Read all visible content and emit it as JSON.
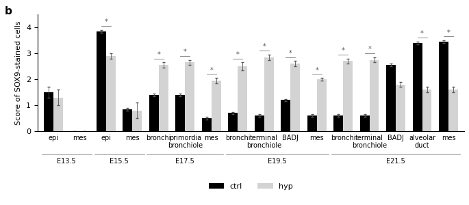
{
  "chart_data": {
    "type": "bar",
    "panel_label": "b",
    "y_label": "Score of SOX9-stained cells",
    "categories": [
      "epi",
      "mes",
      "epi",
      "mes",
      "bronchi",
      "primordia bronchiole",
      "mes",
      "bronchi",
      "terminal bronchiole",
      "BADJ",
      "mes",
      "bronchi",
      "terminal bronchiole",
      "BADJ",
      "alveolar duct",
      "mes"
    ],
    "groups": [
      {
        "name": "E13.5",
        "start": 0,
        "end": 1
      },
      {
        "name": "E15.5",
        "start": 2,
        "end": 3
      },
      {
        "name": "E17.5",
        "start": 4,
        "end": 6
      },
      {
        "name": "E19.5",
        "start": 7,
        "end": 10
      },
      {
        "name": "E21.5",
        "start": 11,
        "end": 15
      }
    ],
    "series": [
      {
        "name": "ctrl",
        "color": "#000000",
        "values": [
          1.5,
          0,
          3.85,
          0.85,
          1.4,
          1.4,
          0.5,
          0.7,
          0.6,
          1.2,
          0.6,
          0.6,
          0.6,
          2.55,
          3.4,
          3.45
        ],
        "errors": [
          0.2,
          0,
          0.05,
          0.05,
          0.05,
          0.05,
          0.05,
          0.05,
          0.05,
          0.05,
          0.05,
          0.05,
          0.05,
          0.05,
          0.05,
          0.05
        ]
      },
      {
        "name": "hyp",
        "color": "#d3d3d3",
        "values": [
          1.3,
          0,
          2.9,
          0.8,
          2.55,
          2.65,
          1.95,
          2.5,
          2.85,
          2.6,
          2.0,
          2.7,
          2.75,
          1.8,
          1.6,
          1.6
        ],
        "errors": [
          0.3,
          0,
          0.1,
          0.3,
          0.1,
          0.1,
          0.1,
          0.15,
          0.1,
          0.1,
          0.05,
          0.1,
          0.1,
          0.1,
          0.1,
          0.1
        ]
      }
    ],
    "significance": [
      null,
      null,
      "*",
      null,
      "*",
      "*",
      "*",
      "*",
      "*",
      "*",
      "*",
      "*",
      "*",
      null,
      "*",
      "*"
    ],
    "ylim": [
      0,
      4.5
    ],
    "yticks": [
      0,
      1,
      2,
      3,
      4
    ],
    "legend": "lower center",
    "grid": false
  }
}
